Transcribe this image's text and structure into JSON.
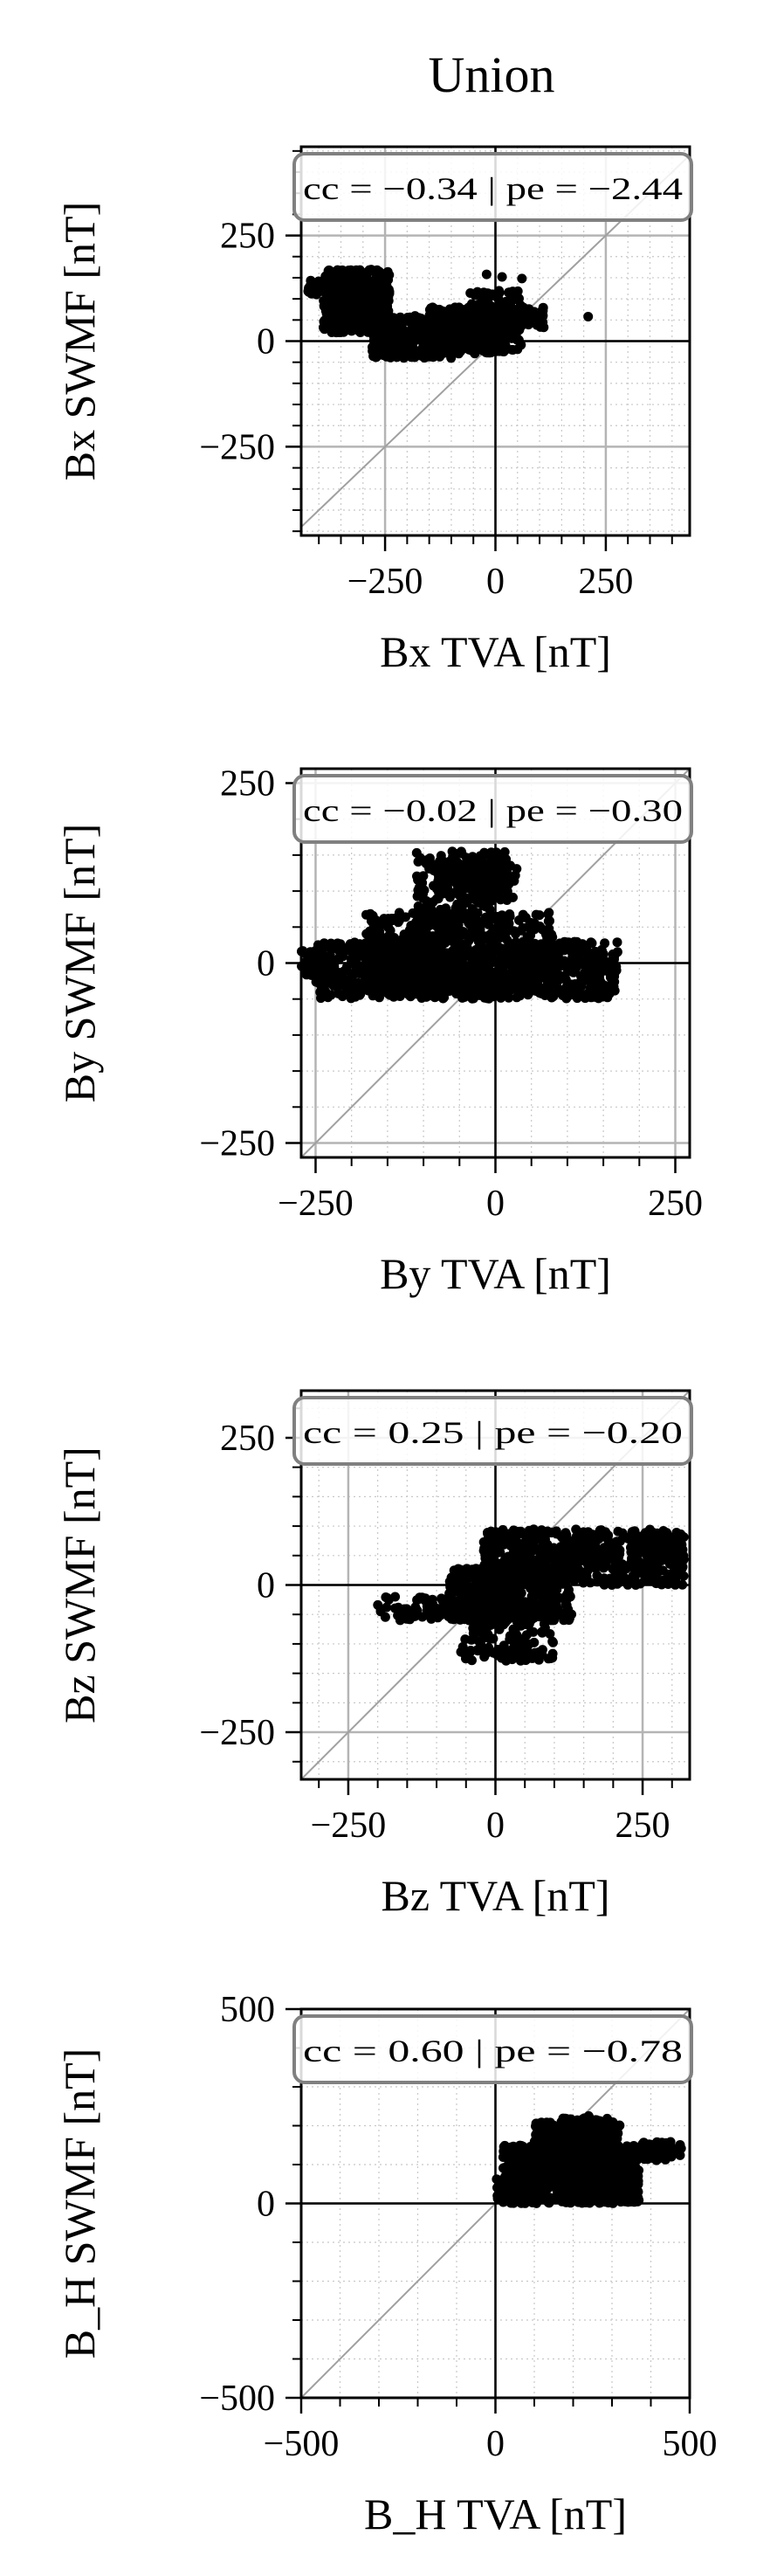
{
  "figure": {
    "title": "Union"
  },
  "chart_data": [
    {
      "type": "scatter",
      "xlabel": "Bx TVA [nT]",
      "ylabel": "Bx SWMF [nT]",
      "xlim": [
        -440,
        440
      ],
      "ylim": [
        -460,
        460
      ],
      "xticks": [
        -250,
        0,
        250
      ],
      "yticks": [
        -250,
        0,
        250
      ],
      "xtick_labels": [
        "−250",
        "0",
        "250"
      ],
      "ytick_labels": [
        "−250",
        "0",
        "250"
      ],
      "annotation": "cc = −0.34 | pe = −2.44",
      "grid": true,
      "clusters": [
        {
          "x": [
            -390,
            -240
          ],
          "y": [
            20,
            170
          ],
          "n": 420
        },
        {
          "x": [
            -280,
            -100
          ],
          "y": [
            -40,
            60
          ],
          "n": 300
        },
        {
          "x": [
            -150,
            20
          ],
          "y": [
            -30,
            80
          ],
          "n": 280
        },
        {
          "x": [
            -60,
            60
          ],
          "y": [
            -30,
            120
          ],
          "n": 160
        },
        {
          "x": [
            40,
            110
          ],
          "y": [
            30,
            80
          ],
          "n": 40
        },
        {
          "x": [
            -425,
            -345
          ],
          "y": [
            110,
            145
          ],
          "n": 30
        }
      ],
      "points": [
        [
          -412,
          132
        ],
        [
          -398,
          118
        ],
        [
          60,
          148
        ],
        [
          107,
          58
        ],
        [
          210,
          58
        ],
        [
          15,
          152
        ],
        [
          -20,
          158
        ]
      ]
    },
    {
      "type": "scatter",
      "xlabel": "By TVA [nT]",
      "ylabel": "By SWMF [nT]",
      "xlim": [
        -270,
        270
      ],
      "ylim": [
        -270,
        270
      ],
      "xticks": [
        -250,
        0,
        250
      ],
      "yticks": [
        -250,
        0,
        250
      ],
      "xtick_labels": [
        "−250",
        "0",
        "250"
      ],
      "ytick_labels": [
        "−250",
        "0",
        "250"
      ],
      "annotation": "cc = −0.02 | pe = −0.30",
      "grid": true,
      "clusters": [
        {
          "x": [
            -250,
            170
          ],
          "y": [
            -50,
            30
          ],
          "n": 900
        },
        {
          "x": [
            -180,
            80
          ],
          "y": [
            -40,
            70
          ],
          "n": 420
        },
        {
          "x": [
            -110,
            20
          ],
          "y": [
            30,
            155
          ],
          "n": 260
        },
        {
          "x": [
            -80,
            30
          ],
          "y": [
            90,
            140
          ],
          "n": 90
        },
        {
          "x": [
            -270,
            -230
          ],
          "y": [
            -20,
            20
          ],
          "n": 40
        }
      ],
      "points": [
        [
          -215,
          -30
        ],
        [
          -200,
          -25
        ],
        [
          165,
          5
        ],
        [
          160,
          -2
        ],
        [
          -60,
          155
        ]
      ]
    },
    {
      "type": "scatter",
      "xlabel": "Bz TVA [nT]",
      "ylabel": "Bz SWMF [nT]",
      "xlim": [
        -330,
        330
      ],
      "ylim": [
        -330,
        330
      ],
      "xticks": [
        -250,
        0,
        250
      ],
      "yticks": [
        -250,
        0,
        250
      ],
      "xtick_labels": [
        "−250",
        "0",
        "250"
      ],
      "ytick_labels": [
        "−250",
        "0",
        "250"
      ],
      "annotation": "cc = 0.25 | pe = −0.20",
      "grid": true,
      "clusters": [
        {
          "x": [
            -20,
            320
          ],
          "y": [
            0,
            95
          ],
          "n": 620
        },
        {
          "x": [
            -80,
            130
          ],
          "y": [
            -60,
            30
          ],
          "n": 420
        },
        {
          "x": [
            -60,
            100
          ],
          "y": [
            -130,
            -30
          ],
          "n": 160
        },
        {
          "x": [
            -200,
            -60
          ],
          "y": [
            -60,
            -20
          ],
          "n": 60
        },
        {
          "x": [
            230,
            320
          ],
          "y": [
            40,
            70
          ],
          "n": 60
        }
      ],
      "points": [
        [
          -195,
          -45
        ],
        [
          -185,
          -38
        ],
        [
          318,
          60
        ],
        [
          310,
          52
        ],
        [
          80,
          -110
        ]
      ]
    },
    {
      "type": "scatter",
      "xlabel": "B_H TVA [nT]",
      "ylabel": "B_H SWMF [nT]",
      "xlim": [
        -500,
        500
      ],
      "ylim": [
        -500,
        500
      ],
      "xticks": [
        -500,
        0,
        500
      ],
      "yticks": [
        -500,
        0,
        500
      ],
      "xtick_labels": [
        "−500",
        "0",
        "500"
      ],
      "ytick_labels": [
        "−500",
        "0",
        "500"
      ],
      "annotation": "cc = 0.60 | pe = −0.78",
      "grid": true,
      "clusters": [
        {
          "x": [
            20,
            370
          ],
          "y": [
            0,
            150
          ],
          "n": 700
        },
        {
          "x": [
            100,
            320
          ],
          "y": [
            50,
            210
          ],
          "n": 380
        },
        {
          "x": [
            170,
            290
          ],
          "y": [
            150,
            220
          ],
          "n": 120
        },
        {
          "x": [
            370,
            480
          ],
          "y": [
            110,
            160
          ],
          "n": 60
        },
        {
          "x": [
            0,
            120
          ],
          "y": [
            10,
            70
          ],
          "n": 120
        }
      ],
      "points": [
        [
          5,
          20
        ],
        [
          475,
          150
        ],
        [
          470,
          130
        ],
        [
          240,
          225
        ]
      ]
    }
  ]
}
